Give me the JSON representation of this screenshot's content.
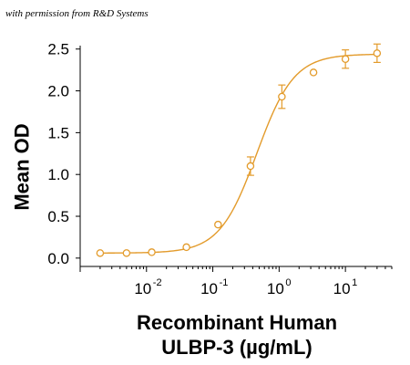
{
  "credit": "with permission from R&D Systems",
  "colors": {
    "series": "#E39B2B",
    "axis": "#000000"
  },
  "chart_data": {
    "type": "scatter",
    "xscale": "log",
    "xlabel": [
      "Recombinant Human",
      "ULBP-3 (µg/mL)"
    ],
    "ylabel": "Mean OD",
    "xlim": [
      0.001,
      50
    ],
    "ylim": [
      -0.1,
      2.65
    ],
    "yticks": [
      0.0,
      0.5,
      1.0,
      1.5,
      2.0,
      2.5
    ],
    "ytick_labels": [
      "0.0",
      "0.5",
      "1.0",
      "1.5",
      "2.0",
      "2.5"
    ],
    "xticks": [
      {
        "value": 0.01,
        "base": "10",
        "exp": "-2"
      },
      {
        "value": 0.1,
        "base": "10",
        "exp": "-1"
      },
      {
        "value": 1,
        "base": "10",
        "exp": "0"
      },
      {
        "value": 10,
        "base": "10",
        "exp": "1"
      }
    ],
    "grid": false,
    "series": [
      {
        "x": [
          0.002,
          0.005,
          0.012,
          0.04,
          0.12,
          0.37,
          1.1,
          3.3,
          10,
          30
        ],
        "y": [
          0.06,
          0.06,
          0.07,
          0.13,
          0.4,
          1.1,
          1.93,
          2.22,
          2.38,
          2.45
        ],
        "err": [
          0.0,
          0.0,
          0.0,
          0.0,
          0.0,
          0.11,
          0.14,
          0.0,
          0.11,
          0.11
        ],
        "marker": "open-circle",
        "fit": {
          "model": "4PL",
          "bottom": 0.06,
          "top": 2.44,
          "ec50": 0.46,
          "hill": 1.55
        }
      }
    ]
  }
}
